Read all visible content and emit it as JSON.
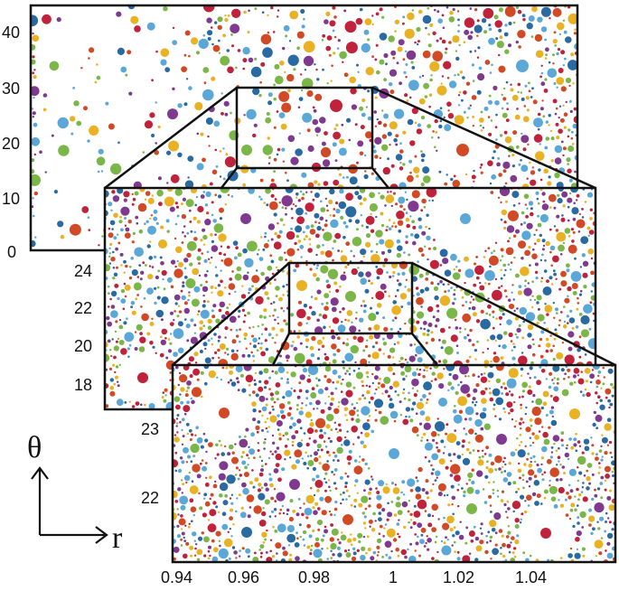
{
  "palette": [
    "#e9b124",
    "#d14a25",
    "#5ba8d8",
    "#7ab648",
    "#7f3a8f",
    "#2a6aa3",
    "#c0223b"
  ],
  "panels": [
    {
      "name": "outer-panel",
      "y_ticks": [
        "40",
        "30",
        "20",
        "10",
        "0"
      ],
      "x_ticks": []
    },
    {
      "name": "middle-panel",
      "y_ticks": [
        "24",
        "22",
        "20",
        "18"
      ],
      "x_ticks": []
    },
    {
      "name": "inner-panel",
      "y_ticks": [
        "23",
        "22"
      ],
      "x_ticks": [
        "0.94",
        "0.96",
        "0.98",
        "1",
        "1.02",
        "1.04"
      ]
    }
  ],
  "axis_indicator": {
    "vertical_symbol": "θ",
    "horizontal_symbol": "r"
  }
}
